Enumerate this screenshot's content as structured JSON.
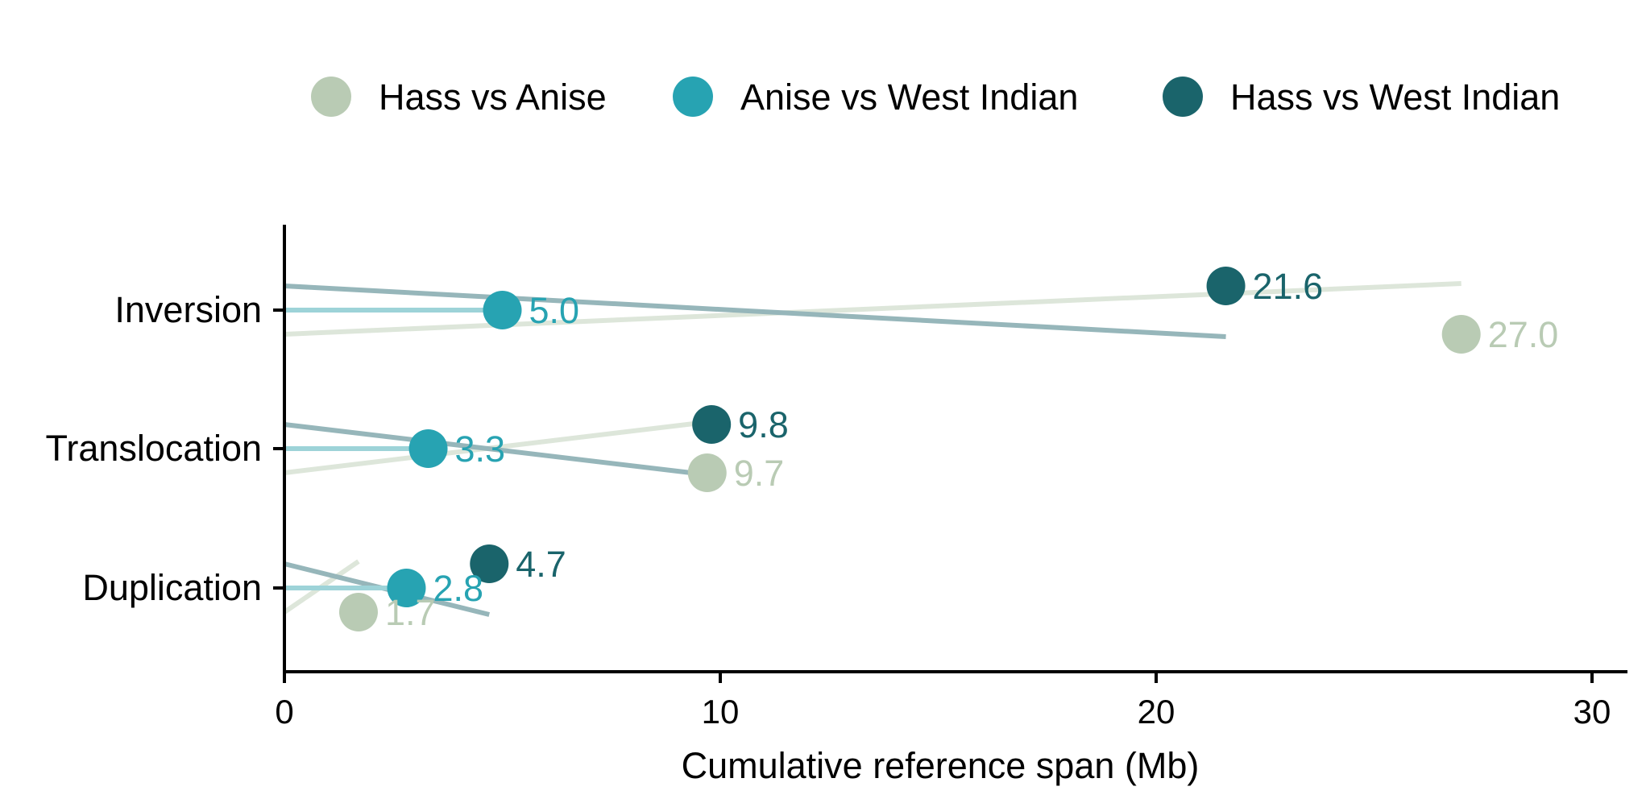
{
  "chart_data": {
    "type": "lollipop",
    "title": "",
    "xlabel": "Cumulative reference span (Mb)",
    "ylabel": "",
    "xlim": [
      0,
      30.8
    ],
    "xticks": [
      0,
      10,
      20,
      30
    ],
    "grid": false,
    "legend_position": "top",
    "categories": [
      "Inversion",
      "Translocation",
      "Duplication"
    ],
    "series": [
      {
        "name": "Hass vs Anise",
        "color": "#b9cbb4",
        "line_color": "#dde6da",
        "values": [
          27.0,
          9.7,
          1.7
        ],
        "labels": [
          "27.0",
          "9.7",
          "1.7"
        ]
      },
      {
        "name": "Anise vs West Indian",
        "color": "#27a3b2",
        "line_color": "#9dd3d8",
        "values": [
          5.0,
          3.3,
          2.8
        ],
        "labels": [
          "5.0",
          "3.3",
          "2.8"
        ]
      },
      {
        "name": "Hass vs West Indian",
        "color": "#1a646b",
        "line_color": "#96b6ba",
        "values": [
          21.6,
          9.8,
          4.7
        ],
        "labels": [
          "21.6",
          "9.8",
          "4.7"
        ]
      }
    ]
  }
}
